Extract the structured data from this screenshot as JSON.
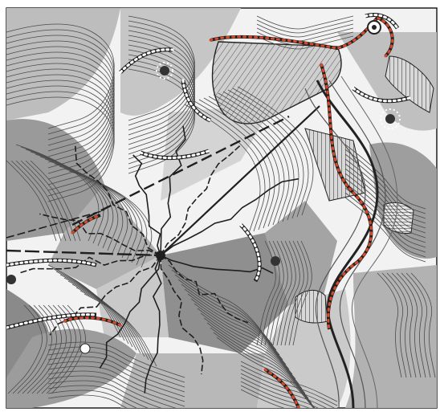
{
  "artwork": {
    "kind": "abstract-contour-line-drawing",
    "has_visible_text": false,
    "palette": {
      "ink": "#1f1f1f",
      "line": "#4a4a4a",
      "fill_dark": "#8a8a8a",
      "fill_mid": "#a8a8a8",
      "fill_light": "#cfcfcf",
      "paper": "#f2f2f2",
      "accent_red": "#d94a2a"
    },
    "features": [
      "radiating-spokes",
      "flowing-contour-bands",
      "cross-hatched-panels",
      "dotted-borders",
      "red-dotted-paths",
      "dark-node-dots"
    ]
  }
}
